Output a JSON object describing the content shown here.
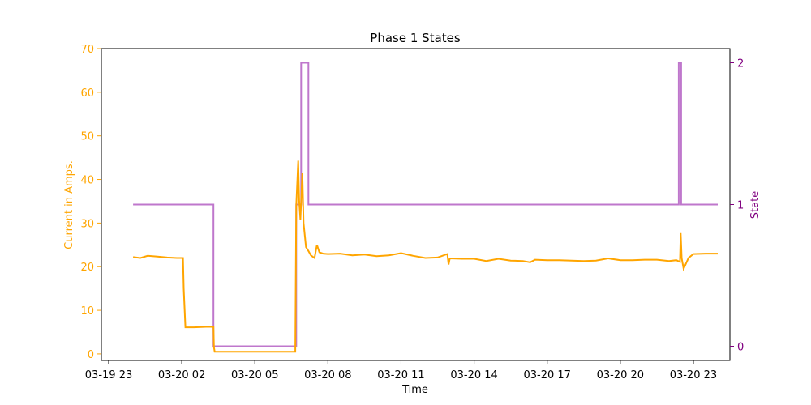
{
  "chart_data": {
    "type": "line",
    "title": "Phase 1 States",
    "xlabel": "Time",
    "ylabel_left": "Current in Amps.",
    "ylabel_right": "State",
    "colors": {
      "current": "#ffa500",
      "state": "#bf77cc",
      "left_axis": "#ffa500",
      "right_axis": "#800080",
      "axes": "#000000"
    },
    "x_axis": {
      "unit": "hours since 03-19 23:00",
      "range": [
        -0.3,
        25.5
      ],
      "ticks": [
        {
          "value": 0,
          "label": "03-19 23"
        },
        {
          "value": 3,
          "label": "03-20 02"
        },
        {
          "value": 6,
          "label": "03-20 05"
        },
        {
          "value": 9,
          "label": "03-20 08"
        },
        {
          "value": 12,
          "label": "03-20 11"
        },
        {
          "value": 15,
          "label": "03-20 14"
        },
        {
          "value": 18,
          "label": "03-20 17"
        },
        {
          "value": 21,
          "label": "03-20 20"
        },
        {
          "value": 24,
          "label": "03-20 23"
        }
      ]
    },
    "y_left": {
      "range": [
        -1.5,
        70
      ],
      "ticks": [
        0,
        10,
        20,
        30,
        40,
        50,
        60,
        70
      ]
    },
    "y_right": {
      "range": [
        -0.1,
        2.1
      ],
      "ticks": [
        0,
        1,
        2
      ]
    },
    "series": [
      {
        "name": "Current in Amps.",
        "axis": "left",
        "x": [
          1.0,
          1.3,
          1.6,
          2.0,
          2.4,
          2.8,
          3.05,
          3.08,
          3.15,
          3.5,
          4.0,
          4.3,
          4.32,
          4.35,
          5.0,
          6.0,
          7.0,
          7.66,
          7.7,
          7.78,
          7.82,
          7.87,
          7.95,
          8.0,
          8.1,
          8.2,
          8.3,
          8.45,
          8.55,
          8.65,
          8.8,
          9.0,
          9.5,
          10.0,
          10.5,
          11.0,
          11.5,
          12.0,
          12.5,
          13.0,
          13.5,
          13.9,
          13.95,
          14.0,
          14.5,
          15.0,
          15.5,
          16.0,
          16.5,
          17.0,
          17.3,
          17.5,
          18.0,
          18.5,
          19.0,
          19.5,
          20.0,
          20.5,
          21.0,
          21.5,
          22.0,
          22.5,
          23.0,
          23.3,
          23.45,
          23.48,
          23.52,
          23.6,
          23.8,
          24.0,
          24.5,
          25.0
        ],
        "y": [
          22.2,
          22.0,
          22.5,
          22.3,
          22.1,
          22.0,
          22.0,
          15.0,
          6.1,
          6.1,
          6.2,
          6.2,
          1.5,
          0.5,
          0.5,
          0.5,
          0.5,
          0.5,
          34.0,
          44.3,
          35.0,
          30.8,
          41.5,
          30.0,
          24.5,
          23.6,
          22.6,
          22.0,
          25.0,
          23.3,
          23.0,
          22.9,
          23.0,
          22.6,
          22.8,
          22.4,
          22.6,
          23.1,
          22.5,
          22.0,
          22.1,
          22.9,
          20.5,
          21.9,
          21.8,
          21.8,
          21.3,
          21.8,
          21.4,
          21.3,
          21.0,
          21.6,
          21.5,
          21.5,
          21.4,
          21.3,
          21.4,
          21.9,
          21.5,
          21.5,
          21.6,
          21.6,
          21.3,
          21.5,
          21.1,
          27.7,
          22.0,
          19.5,
          22.0,
          22.9,
          23.0,
          23.0
        ]
      },
      {
        "name": "State",
        "axis": "right",
        "x": [
          1.0,
          4.3,
          4.3,
          7.7,
          7.7,
          7.9,
          7.9,
          8.2,
          8.2,
          23.4,
          23.4,
          23.5,
          23.5,
          25.0
        ],
        "y": [
          1,
          1,
          0,
          0,
          1,
          1,
          2,
          2,
          1,
          1,
          2,
          2,
          1,
          1
        ]
      }
    ]
  }
}
